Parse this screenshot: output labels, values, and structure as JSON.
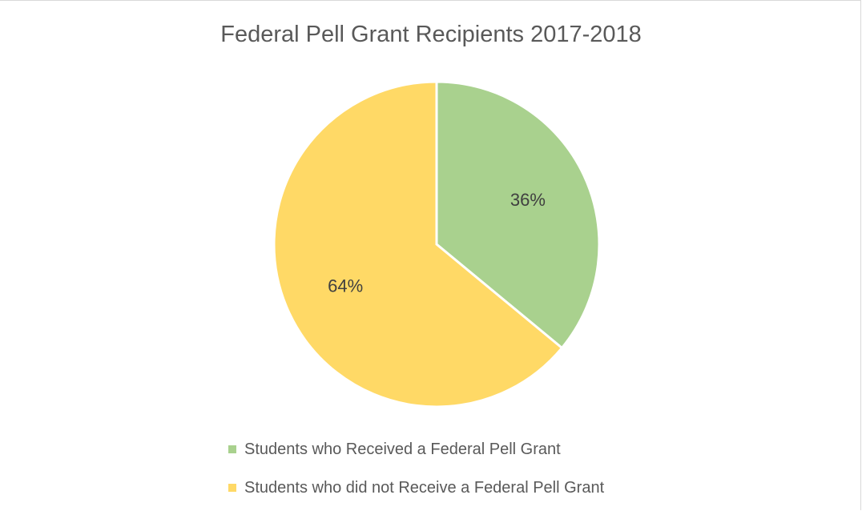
{
  "chart_data": {
    "type": "pie",
    "title": "Federal Pell Grant Recipients 2017-2018",
    "categories": [
      "Students who Received a Federal Pell Grant",
      "Students who did not Receive a Federal Pell Grant"
    ],
    "values": [
      36,
      64
    ],
    "data_labels": [
      "36%",
      "64%"
    ],
    "colors": [
      "#a9d18e",
      "#ffd966"
    ],
    "legend": "bottom",
    "start_angle_deg": 0,
    "direction": "clockwise"
  }
}
